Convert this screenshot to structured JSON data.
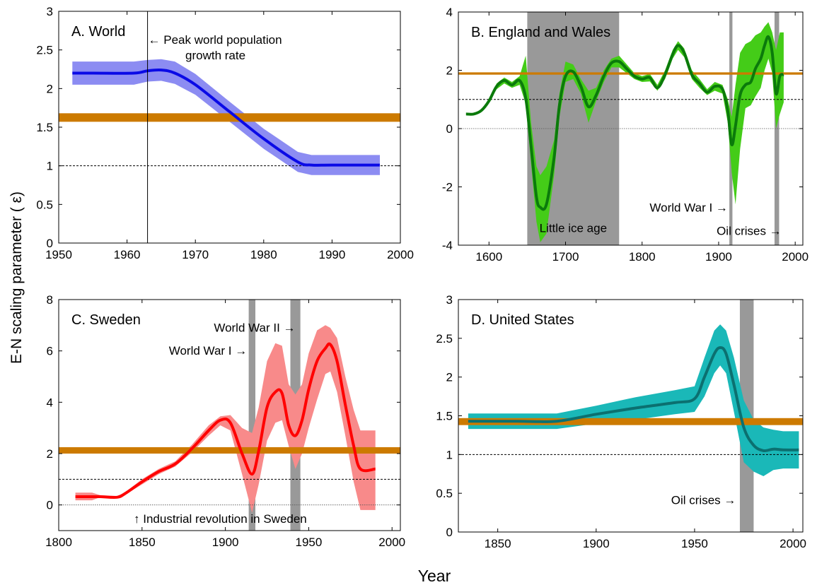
{
  "figure": {
    "ylabel": "E-N scaling parameter ( ε)",
    "xlabel": "Year"
  },
  "chart_data": [
    {
      "type": "line",
      "panel": "A",
      "title": "A. World",
      "xlim": [
        1950,
        2000
      ],
      "ylim": [
        0,
        3
      ],
      "xticks": [
        1950,
        1960,
        1970,
        1980,
        1990,
        2000
      ],
      "yticks": [
        0,
        0.5,
        1,
        1.5,
        2,
        2.5,
        3
      ],
      "colors": {
        "line": "#0a0ae6",
        "band": "#8c8cf2",
        "ref": "#cc7a00"
      },
      "series": [
        {
          "x": [
            1952,
            1955,
            1961,
            1963,
            1965,
            1967,
            1970,
            1975,
            1980,
            1985,
            1987,
            1990,
            1997
          ],
          "y": [
            2.2,
            2.2,
            2.2,
            2.23,
            2.24,
            2.2,
            2.05,
            1.7,
            1.35,
            1.05,
            1.01,
            1.01,
            1.01
          ],
          "lower": [
            2.05,
            2.05,
            2.05,
            2.09,
            2.1,
            2.06,
            1.92,
            1.57,
            1.22,
            0.92,
            0.88,
            0.88,
            0.88
          ],
          "upper": [
            2.35,
            2.35,
            2.35,
            2.37,
            2.38,
            2.35,
            2.19,
            1.83,
            1.48,
            1.18,
            1.14,
            1.14,
            1.14
          ]
        }
      ],
      "reference_band": {
        "y": [
          1.57,
          1.68
        ]
      },
      "dashed_line": {
        "y": 1
      },
      "vlines": [
        {
          "x": 1963
        }
      ],
      "shaded_periods": [],
      "annotations": [
        {
          "label_lines": [
            "← Peak world population",
            "growth rate"
          ],
          "x": 1963.1,
          "y": 2.58
        }
      ]
    },
    {
      "type": "line",
      "panel": "B",
      "title": "B. England and Wales",
      "xlim": [
        1560,
        2010
      ],
      "ylim": [
        -4,
        4
      ],
      "xticks": [
        1600,
        1700,
        1800,
        1900,
        2000
      ],
      "yticks": [
        -4,
        -2,
        0,
        2,
        4
      ],
      "colors": {
        "line": "#0b7a0b",
        "band": "#44cc18",
        "ref": "#cc7a00"
      },
      "series": [
        {
          "x": [
            1570,
            1580,
            1590,
            1600,
            1610,
            1620,
            1630,
            1640,
            1648,
            1655,
            1662,
            1667,
            1675,
            1685,
            1692,
            1700,
            1710,
            1720,
            1730,
            1740,
            1750,
            1760,
            1770,
            1780,
            1790,
            1800,
            1810,
            1820,
            1830,
            1840,
            1847,
            1855,
            1865,
            1875,
            1885,
            1895,
            1905,
            1912,
            1917,
            1922,
            1928,
            1935,
            1942,
            1948,
            1955,
            1960,
            1965,
            1970,
            1975,
            1980,
            1985
          ],
          "y": [
            0.5,
            0.5,
            0.62,
            0.95,
            1.45,
            1.65,
            1.5,
            1.65,
            1.05,
            -0.6,
            -2.35,
            -2.7,
            -2.6,
            -1.0,
            0.8,
            1.8,
            1.95,
            1.45,
            0.75,
            1.15,
            1.8,
            2.25,
            2.3,
            2.05,
            1.8,
            1.7,
            1.75,
            1.4,
            1.85,
            2.55,
            2.85,
            2.6,
            1.85,
            1.55,
            1.25,
            1.45,
            1.35,
            0.6,
            -0.55,
            0.1,
            1.15,
            1.5,
            1.6,
            2.05,
            2.4,
            2.85,
            3.15,
            2.6,
            1.2,
            1.8,
            1.85
          ],
          "lower": [
            0.5,
            0.5,
            0.62,
            0.9,
            1.35,
            1.55,
            1.4,
            1.5,
            0.85,
            -1.2,
            -3.2,
            -3.9,
            -3.6,
            -1.6,
            0.4,
            1.6,
            1.7,
            1.2,
            0.2,
            0.95,
            1.6,
            2.1,
            2.1,
            1.9,
            1.7,
            1.6,
            1.62,
            1.3,
            1.7,
            2.4,
            2.7,
            2.45,
            1.7,
            1.4,
            1.15,
            1.3,
            1.2,
            0.2,
            -1.5,
            -2.6,
            -0.7,
            0.7,
            0.8,
            1.1,
            1.4,
            2.0,
            2.4,
            1.9,
            0.0,
            0.5,
            0.9
          ],
          "upper": [
            0.5,
            0.5,
            0.62,
            1.0,
            1.55,
            1.75,
            1.6,
            1.8,
            2.5,
            0.2,
            -1.3,
            -1.6,
            -1.3,
            -0.4,
            1.2,
            2.3,
            2.2,
            1.7,
            1.3,
            1.4,
            2.0,
            2.4,
            2.5,
            2.2,
            1.9,
            1.8,
            1.88,
            1.5,
            2.0,
            2.7,
            3.0,
            2.75,
            2.0,
            1.7,
            1.35,
            1.6,
            1.5,
            1.0,
            0.4,
            1.5,
            2.6,
            2.9,
            3.0,
            3.2,
            3.3,
            3.5,
            3.65,
            3.3,
            2.7,
            3.3,
            3.3
          ]
        }
      ],
      "reference_band": {
        "y": [
          1.85,
          1.93
        ]
      },
      "dashed_line": {
        "y": 1
      },
      "dotted_line": {
        "y": 0
      },
      "vlines": [],
      "shaded_periods": [
        {
          "from": 1650,
          "to": 1770
        },
        {
          "from": 1914,
          "to": 1918
        },
        {
          "from": 1973,
          "to": 1979
        }
      ],
      "annotations": [
        {
          "label_lines": [
            "World War I →"
          ],
          "x": 1912,
          "y": -2.85,
          "anchor": "end"
        },
        {
          "label_lines": [
            "Little ice age"
          ],
          "x": 1710,
          "y": -3.55,
          "anchor": "middle"
        },
        {
          "label_lines": [
            "Oil crises →"
          ],
          "x": 1982,
          "y": -3.65,
          "anchor": "end"
        }
      ]
    },
    {
      "type": "line",
      "panel": "C",
      "title": "C. Sweden",
      "xlim": [
        1800,
        2005
      ],
      "ylim": [
        -1,
        8
      ],
      "xticks": [
        1800,
        1850,
        1900,
        1950,
        2000
      ],
      "yticks": [
        0,
        2,
        4,
        6,
        8
      ],
      "colors": {
        "line": "#ff0000",
        "band": "#f88a8a",
        "ref": "#cc7a00"
      },
      "series": [
        {
          "x": [
            1810,
            1820,
            1825,
            1835,
            1840,
            1850,
            1860,
            1870,
            1880,
            1890,
            1897,
            1903,
            1910,
            1916,
            1920,
            1925,
            1930,
            1934,
            1938,
            1942,
            1946,
            1950,
            1955,
            1960,
            1963,
            1967,
            1972,
            1977,
            1981,
            1990
          ],
          "y": [
            0.32,
            0.32,
            0.32,
            0.3,
            0.45,
            0.9,
            1.3,
            1.6,
            2.2,
            2.9,
            3.3,
            3.2,
            2.0,
            1.2,
            2.1,
            3.8,
            4.4,
            4.35,
            3.1,
            2.7,
            3.3,
            4.5,
            5.6,
            6.1,
            6.25,
            5.6,
            3.9,
            2.3,
            1.4,
            1.4
          ],
          "lower": [
            0.18,
            0.18,
            0.3,
            0.3,
            0.4,
            0.8,
            1.2,
            1.5,
            2.05,
            2.7,
            3.1,
            2.9,
            1.2,
            -0.3,
            0.8,
            2.5,
            3.2,
            3.3,
            2.3,
            1.4,
            2.0,
            3.0,
            4.1,
            5.1,
            5.2,
            4.4,
            2.7,
            0.9,
            -0.2,
            -0.2
          ],
          "upper": [
            0.48,
            0.48,
            0.38,
            0.35,
            0.5,
            1.0,
            1.4,
            1.7,
            2.35,
            3.1,
            3.45,
            3.5,
            3.0,
            2.8,
            3.8,
            5.6,
            6.3,
            6.2,
            4.7,
            4.3,
            4.7,
            5.9,
            6.8,
            7.0,
            6.9,
            6.5,
            5.0,
            3.7,
            2.9,
            2.9
          ]
        }
      ],
      "reference_band": {
        "y": [
          2.0,
          2.25
        ]
      },
      "dashed_line": {
        "y": 1
      },
      "dotted_line": {
        "y": 0
      },
      "vlines": [],
      "shaded_periods": [
        {
          "from": 1914,
          "to": 1918
        },
        {
          "from": 1939,
          "to": 1945
        }
      ],
      "annotations": [
        {
          "label_lines": [
            "World War II →"
          ],
          "x": 1942,
          "y": 6.75,
          "anchor": "end"
        },
        {
          "label_lines": [
            "World War I →"
          ],
          "x": 1913,
          "y": 5.85,
          "anchor": "end"
        },
        {
          "label_lines": [
            "↑ Industrial revolution in Sweden"
          ],
          "x": 1845,
          "y": -0.7,
          "anchor": "start"
        }
      ]
    },
    {
      "type": "line",
      "panel": "D",
      "title": "D. United States",
      "xlim": [
        1830,
        2005
      ],
      "ylim": [
        0,
        3
      ],
      "xticks": [
        1850,
        1900,
        1950,
        2000
      ],
      "yticks": [
        0,
        0.5,
        1,
        1.5,
        2,
        2.5,
        3
      ],
      "colors": {
        "line": "#0b7070",
        "band": "#1ab8b8",
        "ref": "#cc7a00"
      },
      "series": [
        {
          "x": [
            1835,
            1860,
            1880,
            1900,
            1920,
            1940,
            1950,
            1955,
            1960,
            1963,
            1966,
            1970,
            1975,
            1980,
            1985,
            1990,
            1995,
            2003
          ],
          "y": [
            1.43,
            1.43,
            1.43,
            1.52,
            1.6,
            1.67,
            1.72,
            2.0,
            2.3,
            2.38,
            2.3,
            1.9,
            1.35,
            1.12,
            1.05,
            1.07,
            1.06,
            1.06
          ],
          "lower": [
            1.33,
            1.33,
            1.33,
            1.4,
            1.45,
            1.52,
            1.55,
            1.75,
            2.05,
            2.15,
            2.05,
            1.55,
            0.9,
            0.78,
            0.72,
            0.8,
            0.82,
            0.82
          ],
          "upper": [
            1.53,
            1.53,
            1.53,
            1.63,
            1.74,
            1.83,
            1.88,
            2.25,
            2.6,
            2.68,
            2.6,
            2.25,
            1.7,
            1.45,
            1.35,
            1.32,
            1.3,
            1.3
          ]
        }
      ],
      "reference_band": {
        "y": [
          1.38,
          1.47
        ]
      },
      "dashed_line": {
        "y": 1
      },
      "vlines": [],
      "shaded_periods": [
        {
          "from": 1973,
          "to": 1980
        }
      ],
      "annotations": [
        {
          "label_lines": [
            "Oil crises →"
          ],
          "x": 1971,
          "y": 0.36,
          "anchor": "end"
        }
      ]
    }
  ]
}
